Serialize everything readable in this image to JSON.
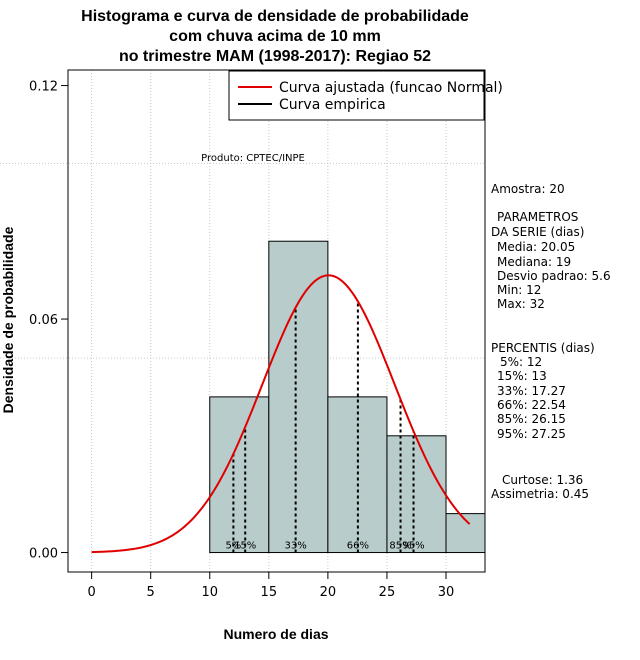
{
  "chart_data": {
    "type": "histogram",
    "title_lines": [
      "Histograma e curva de densidade de probabilidade",
      "com chuva acima de 10 mm",
      "no trimestre MAM (1998-2017): Regiao 52"
    ],
    "xlabel": "Numero de dias",
    "ylabel": "Densidade de probabilidade",
    "xlim": [
      -2,
      33.3
    ],
    "ylim": [
      -0.005,
      0.124
    ],
    "xticks": [
      0,
      5,
      10,
      15,
      20,
      25,
      30
    ],
    "yticks": [
      0.0,
      0.06,
      0.12
    ],
    "ytick_labels": [
      "0.00",
      "0.06",
      "0.12"
    ],
    "grid_x": [
      0,
      5,
      10,
      15,
      20,
      25,
      30
    ],
    "grid_y": [
      0.1,
      0.05
    ],
    "bar_color": "#b8cccc",
    "curve_color": "#e00000",
    "bins": [
      {
        "start": 10,
        "end": 15,
        "density": 0.04
      },
      {
        "start": 15,
        "end": 20,
        "density": 0.08
      },
      {
        "start": 20,
        "end": 25,
        "density": 0.04
      },
      {
        "start": 25,
        "end": 30,
        "density": 0.03
      },
      {
        "start": 30,
        "end": 35,
        "density": 0.01
      }
    ],
    "normal_fit": {
      "mean": 20.05,
      "sd": 5.6,
      "x_from": 0,
      "x_to": 32
    },
    "percentile_lines": [
      {
        "label": "5%",
        "x": 12
      },
      {
        "label": "15%",
        "x": 13
      },
      {
        "label": "33%",
        "x": 17.27
      },
      {
        "label": "66%",
        "x": 22.54
      },
      {
        "label": "85%",
        "x": 26.15
      },
      {
        "label": "95%",
        "x": 27.25
      }
    ],
    "legend": {
      "position": "top-right",
      "entries": [
        {
          "label": "Curva ajustada (funcao Normal)",
          "color": "#e00000"
        },
        {
          "label": "Curva empirica",
          "color": "#000000"
        }
      ]
    },
    "product_label": "Produto: CPTEC/INPE",
    "stats": {
      "amostra": "Amostra: 20",
      "params_title_1": "PARAMETROS",
      "params_title_2": "DA SERIE (dias)",
      "media": "Media: 20.05",
      "mediana": "Mediana: 19",
      "desvio": "Desvio padrao: 5.6",
      "min": "Min: 12",
      "max": "Max: 32",
      "percentis_title": "PERCENTIS (dias)",
      "p5": "5%: 12",
      "p15": "15%: 13",
      "p33": "33%: 17.27",
      "p66": "66%: 22.54",
      "p85": "85%: 26.15",
      "p95": "95%: 27.25",
      "curtose": "Curtose: 1.36",
      "assimetria": "Assimetria: 0.45"
    }
  }
}
